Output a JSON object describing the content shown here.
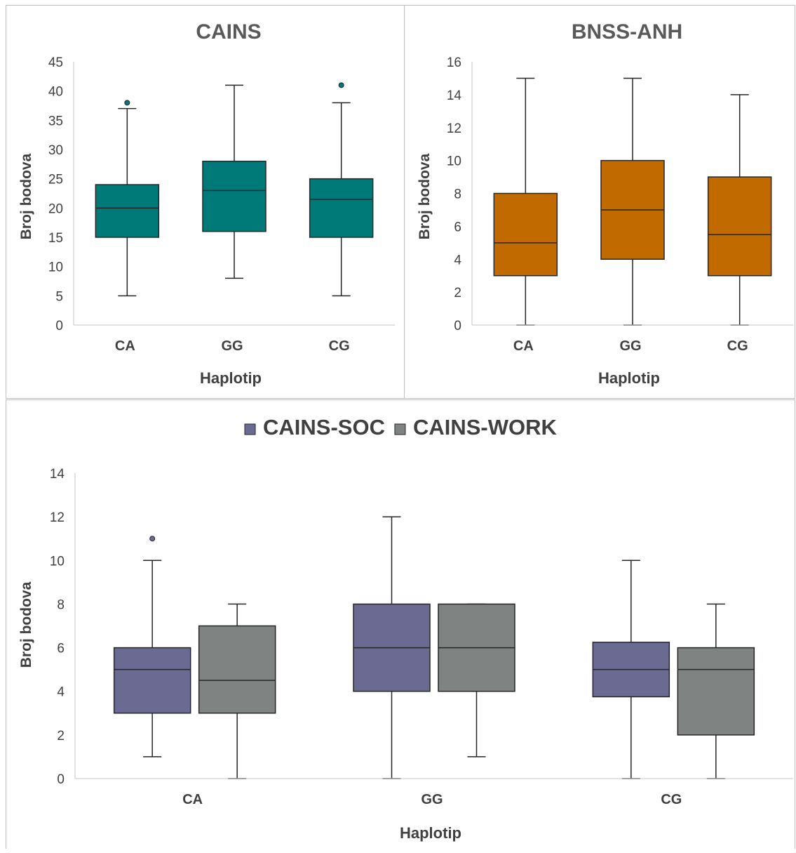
{
  "chart_data": [
    {
      "type": "box",
      "title": "CAINS",
      "xlabel": "Haplotip",
      "ylabel": "Broj bodova",
      "ylim": [
        0,
        45
      ],
      "yticks": [
        0,
        5,
        10,
        15,
        20,
        25,
        30,
        35,
        40,
        45
      ],
      "categories": [
        "CA",
        "GG",
        "CG"
      ],
      "series": [
        {
          "color": "#007a78",
          "boxes": [
            {
              "min": 5,
              "q1": 15,
              "median": 20,
              "q3": 24,
              "max": 37,
              "outliers": [
                38
              ]
            },
            {
              "min": 8,
              "q1": 16,
              "median": 23,
              "q3": 28,
              "max": 41,
              "outliers": []
            },
            {
              "min": 5,
              "q1": 15,
              "median": 21.5,
              "q3": 25,
              "max": 38,
              "outliers": [
                41
              ]
            }
          ]
        }
      ]
    },
    {
      "type": "box",
      "title": "BNSS-ANH",
      "xlabel": "Haplotip",
      "ylabel": "Broj bodova",
      "ylim": [
        0,
        16
      ],
      "yticks": [
        0,
        2,
        4,
        6,
        8,
        10,
        12,
        14,
        16
      ],
      "categories": [
        "CA",
        "GG",
        "CG"
      ],
      "series": [
        {
          "color": "#c06a00",
          "boxes": [
            {
              "min": 0,
              "q1": 3,
              "median": 5,
              "q3": 8,
              "max": 15,
              "outliers": []
            },
            {
              "min": 0,
              "q1": 4,
              "median": 7,
              "q3": 10,
              "max": 15,
              "outliers": []
            },
            {
              "min": 0,
              "q1": 3,
              "median": 5.5,
              "q3": 9,
              "max": 14,
              "outliers": []
            }
          ]
        }
      ]
    },
    {
      "type": "box",
      "title": "",
      "xlabel": "Haplotip",
      "ylabel": "Broj bodova",
      "ylim": [
        0,
        14
      ],
      "yticks": [
        0,
        2,
        4,
        6,
        8,
        10,
        12,
        14
      ],
      "categories": [
        "CA",
        "GG",
        "CG"
      ],
      "legend_position": "top",
      "series": [
        {
          "name": "CAINS-SOC",
          "color": "#6b6a93",
          "boxes": [
            {
              "min": 1,
              "q1": 3,
              "median": 5,
              "q3": 6,
              "max": 10,
              "outliers": [
                11
              ]
            },
            {
              "min": 0,
              "q1": 4,
              "median": 6,
              "q3": 8,
              "max": 12,
              "outliers": []
            },
            {
              "min": 0,
              "q1": 3.75,
              "median": 5,
              "q3": 6.25,
              "max": 10,
              "outliers": []
            }
          ]
        },
        {
          "name": "CAINS-WORK",
          "color": "#7f8382",
          "boxes": [
            {
              "min": 0,
              "q1": 3,
              "median": 4.5,
              "q3": 7,
              "max": 8,
              "outliers": []
            },
            {
              "min": 1,
              "q1": 4,
              "median": 6,
              "q3": 8,
              "max": 8,
              "outliers": []
            },
            {
              "min": 0,
              "q1": 2,
              "median": 5,
              "q3": 6,
              "max": 8,
              "outliers": []
            }
          ]
        }
      ]
    }
  ]
}
